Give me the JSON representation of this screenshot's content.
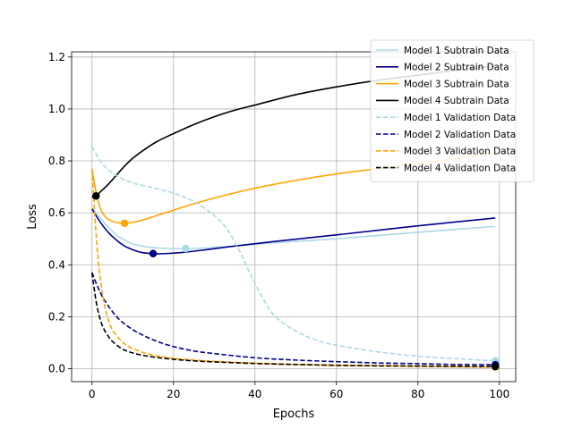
{
  "chart_data": {
    "type": "line",
    "title": "",
    "xlabel": "Epochs",
    "ylabel": "Loss",
    "xlim": [
      -5,
      104
    ],
    "ylim": [
      -0.05,
      1.22
    ],
    "xticks": [
      0,
      20,
      40,
      60,
      80,
      100
    ],
    "yticks": [
      0.0,
      0.2,
      0.4,
      0.6,
      0.8,
      1.0,
      1.2
    ],
    "xtick_labels": [
      "0",
      "20",
      "40",
      "60",
      "80",
      "100"
    ],
    "ytick_labels": [
      "0.0",
      "0.2",
      "0.4",
      "0.6",
      "0.8",
      "1.0",
      "1.2"
    ],
    "grid": true,
    "legend_position": "upper-right",
    "series": [
      {
        "name": "Model 1 Subtrain Data",
        "color": "#add8e6",
        "dash": "solid",
        "x": [
          0,
          2,
          4,
          6,
          8,
          10,
          13,
          16,
          20,
          23,
          28,
          35,
          45,
          60,
          80,
          99
        ],
        "y": [
          0.62,
          0.58,
          0.545,
          0.515,
          0.495,
          0.48,
          0.47,
          0.465,
          0.462,
          0.462,
          0.465,
          0.472,
          0.485,
          0.5,
          0.525,
          0.548
        ],
        "marker": {
          "x": 23,
          "y": 0.462
        }
      },
      {
        "name": "Model 2 Subtrain Data",
        "color": "#00008b",
        "dash": "solid",
        "x": [
          0,
          2,
          4,
          6,
          8,
          10,
          12,
          15,
          18,
          22,
          28,
          35,
          45,
          60,
          80,
          99
        ],
        "y": [
          0.615,
          0.565,
          0.525,
          0.495,
          0.472,
          0.458,
          0.448,
          0.443,
          0.443,
          0.447,
          0.458,
          0.472,
          0.49,
          0.515,
          0.55,
          0.58
        ],
        "marker": {
          "x": 15,
          "y": 0.443
        }
      },
      {
        "name": "Model 3 Subtrain Data",
        "color": "#ffa500",
        "dash": "solid",
        "x": [
          0,
          1,
          2,
          3,
          4,
          6,
          8,
          10,
          13,
          16,
          20,
          25,
          32,
          40,
          50,
          60,
          70,
          80,
          90,
          99
        ],
        "y": [
          0.77,
          0.68,
          0.62,
          0.59,
          0.575,
          0.563,
          0.56,
          0.563,
          0.575,
          0.59,
          0.61,
          0.635,
          0.665,
          0.695,
          0.725,
          0.75,
          0.77,
          0.79,
          0.81,
          0.83
        ],
        "marker": {
          "x": 8,
          "y": 0.56
        }
      },
      {
        "name": "Model 4 Subtrain Data",
        "color": "#000000",
        "dash": "solid",
        "x": [
          0,
          1,
          2,
          4,
          6,
          8,
          10,
          13,
          16,
          20,
          25,
          30,
          35,
          40,
          50,
          60,
          70,
          80,
          90,
          99
        ],
        "y": [
          0.66,
          0.665,
          0.68,
          0.71,
          0.745,
          0.78,
          0.81,
          0.845,
          0.875,
          0.905,
          0.94,
          0.97,
          0.995,
          1.015,
          1.055,
          1.085,
          1.11,
          1.13,
          1.15,
          1.165
        ],
        "marker": {
          "x": 1,
          "y": 0.665
        }
      },
      {
        "name": "Model 1 Validation Data",
        "color": "#add8e6",
        "dash": "dashed",
        "x": [
          0,
          2,
          4,
          7,
          10,
          14,
          18,
          22,
          26,
          30,
          33,
          36,
          39,
          42,
          45,
          50,
          55,
          60,
          70,
          80,
          90,
          99
        ],
        "y": [
          0.855,
          0.8,
          0.765,
          0.735,
          0.715,
          0.7,
          0.685,
          0.665,
          0.635,
          0.59,
          0.54,
          0.46,
          0.36,
          0.27,
          0.2,
          0.145,
          0.11,
          0.09,
          0.065,
          0.048,
          0.038,
          0.03
        ],
        "marker": {
          "x": 99,
          "y": 0.03
        }
      },
      {
        "name": "Model 2 Validation Data",
        "color": "#00008b",
        "dash": "dashed",
        "x": [
          0,
          1,
          2,
          3,
          5,
          7,
          10,
          13,
          16,
          20,
          25,
          30,
          40,
          50,
          60,
          70,
          80,
          90,
          99
        ],
        "y": [
          0.37,
          0.33,
          0.295,
          0.265,
          0.22,
          0.185,
          0.15,
          0.125,
          0.105,
          0.085,
          0.068,
          0.058,
          0.042,
          0.033,
          0.027,
          0.022,
          0.019,
          0.016,
          0.015
        ],
        "marker": {
          "x": 99,
          "y": 0.015
        }
      },
      {
        "name": "Model 3 Validation Data",
        "color": "#ffa500",
        "dash": "dashed",
        "x": [
          0,
          1,
          2,
          3,
          4,
          5,
          7,
          9,
          12,
          15,
          20,
          25,
          30,
          40,
          50,
          60,
          70,
          80,
          90,
          99
        ],
        "y": [
          0.77,
          0.52,
          0.35,
          0.25,
          0.19,
          0.15,
          0.11,
          0.085,
          0.065,
          0.052,
          0.04,
          0.033,
          0.028,
          0.021,
          0.016,
          0.013,
          0.011,
          0.009,
          0.007,
          0.006
        ],
        "marker": {
          "x": 99,
          "y": 0.006
        }
      },
      {
        "name": "Model 4 Validation Data",
        "color": "#000000",
        "dash": "dashed",
        "x": [
          0,
          1,
          2,
          3,
          4,
          5,
          7,
          9,
          12,
          15,
          20,
          25,
          30,
          40,
          50,
          60,
          70,
          80,
          90,
          99
        ],
        "y": [
          0.37,
          0.26,
          0.19,
          0.15,
          0.125,
          0.105,
          0.08,
          0.065,
          0.053,
          0.045,
          0.036,
          0.03,
          0.026,
          0.02,
          0.016,
          0.013,
          0.011,
          0.01,
          0.009,
          0.008
        ],
        "marker": {
          "x": 99,
          "y": 0.008
        }
      }
    ]
  }
}
